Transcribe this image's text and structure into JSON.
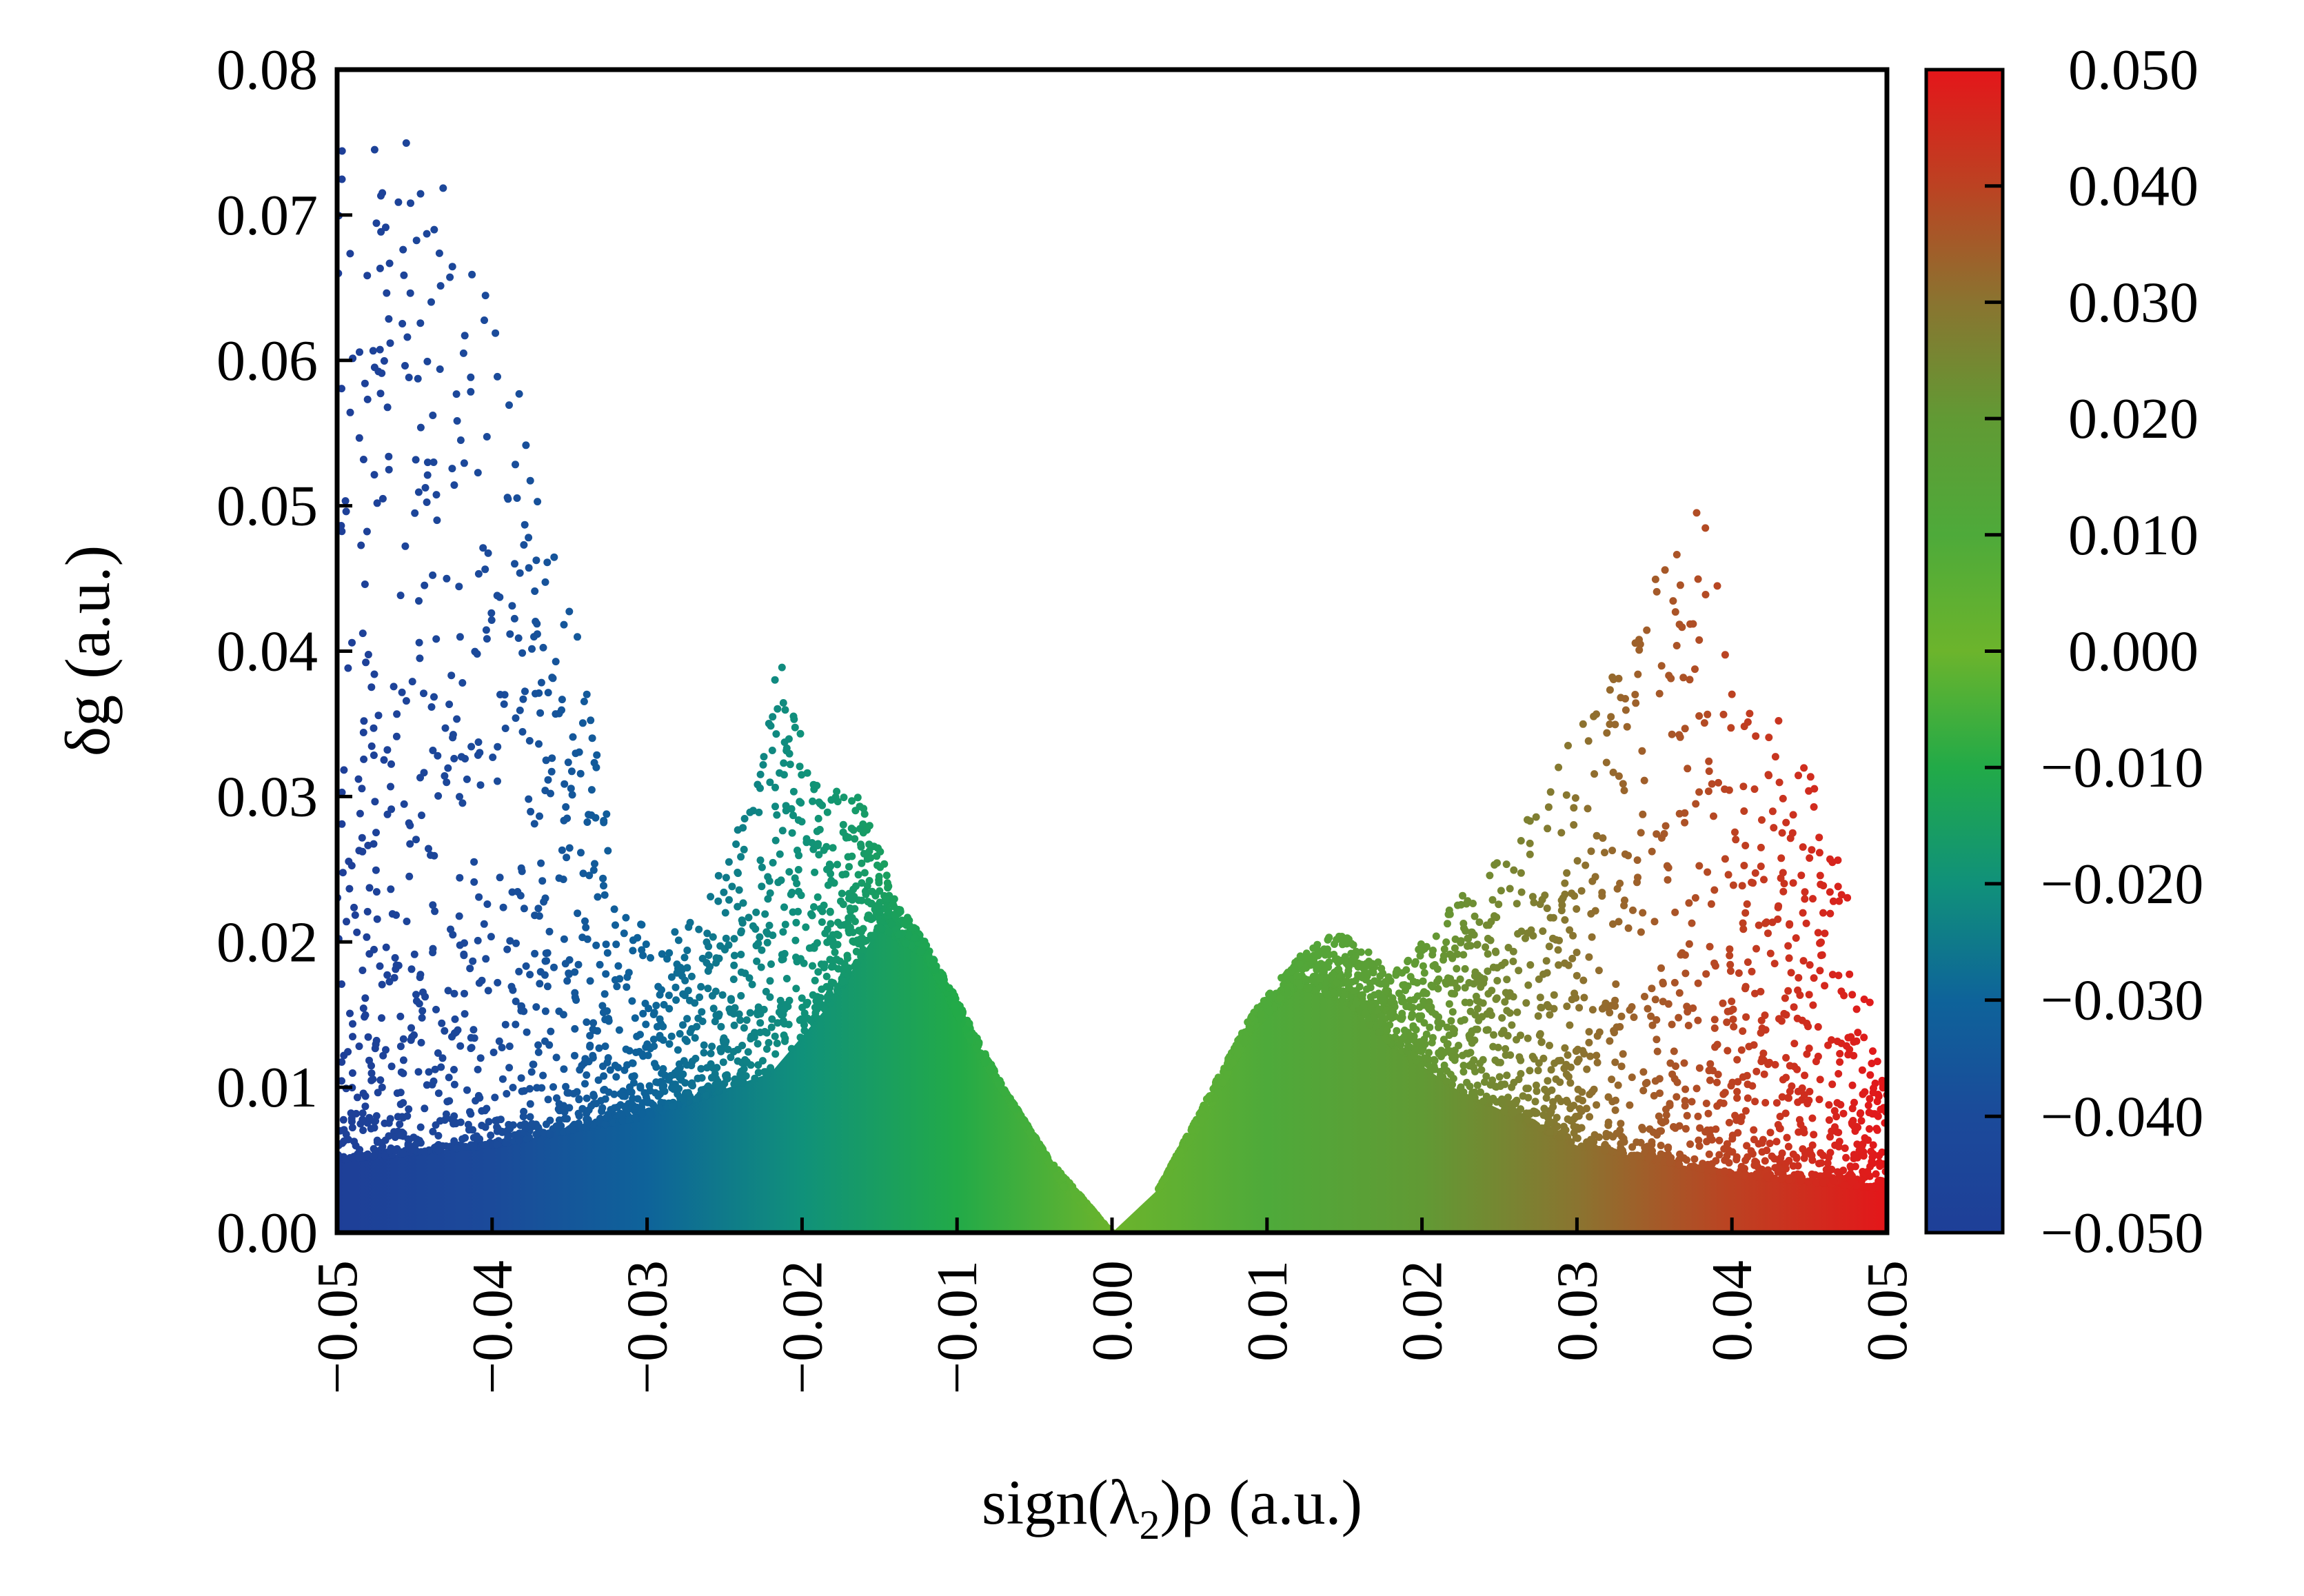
{
  "chart_data": {
    "type": "scatter",
    "title": "",
    "xlabel": "sign(λ₂)ρ (a.u.)",
    "xlabel_parts": {
      "pre": "sign(λ",
      "sub": "2",
      "post": ")ρ (a.u.)"
    },
    "ylabel": "δg (a.u.)",
    "xlim": [
      -0.05,
      0.05
    ],
    "ylim": [
      0,
      0.08
    ],
    "x_ticks": [
      "−0.05",
      "−0.04",
      "−0.03",
      "−0.02",
      "−0.01",
      "0.00",
      "0.01",
      "0.02",
      "0.03",
      "0.04",
      "0.05"
    ],
    "x_tick_values": [
      -0.05,
      -0.04,
      -0.03,
      -0.02,
      -0.01,
      0,
      0.01,
      0.02,
      0.03,
      0.04,
      0.05
    ],
    "y_ticks": [
      "0.00",
      "0.01",
      "0.02",
      "0.03",
      "0.04",
      "0.05",
      "0.06",
      "0.07",
      "0.08"
    ],
    "y_tick_values": [
      0,
      0.01,
      0.02,
      0.03,
      0.04,
      0.05,
      0.06,
      0.07,
      0.08
    ],
    "grid": false,
    "color_by": "x",
    "colorbar": {
      "range": [
        -0.05,
        0.05
      ],
      "ticks": [
        "0.050",
        "0.040",
        "0.030",
        "0.020",
        "0.010",
        "0.000",
        "−0.010",
        "−0.020",
        "−0.030",
        "−0.040",
        "−0.050"
      ],
      "tick_values": [
        0.05,
        0.04,
        0.03,
        0.02,
        0.01,
        0,
        -0.01,
        -0.02,
        -0.03,
        -0.04,
        -0.05
      ],
      "colors": [
        {
          "v": -0.05,
          "c": "#1e3f98"
        },
        {
          "v": -0.04,
          "c": "#1b4a9a"
        },
        {
          "v": -0.03,
          "c": "#0e639a"
        },
        {
          "v": -0.02,
          "c": "#10917a"
        },
        {
          "v": -0.01,
          "c": "#22aa48"
        },
        {
          "v": 0.0,
          "c": "#6cb42c"
        },
        {
          "v": 0.01,
          "c": "#4eaa3a"
        },
        {
          "v": 0.02,
          "c": "#619a34"
        },
        {
          "v": 0.03,
          "c": "#8a7430"
        },
        {
          "v": 0.04,
          "c": "#bc4222"
        },
        {
          "v": 0.05,
          "c": "#e4161a"
        }
      ]
    },
    "upper_envelope": [
      [
        -0.0495,
        0.08
      ],
      [
        -0.046,
        0.076
      ],
      [
        -0.043,
        0.072
      ],
      [
        -0.04,
        0.066
      ],
      [
        -0.037,
        0.052
      ],
      [
        -0.035,
        0.045
      ],
      [
        -0.034,
        0.04
      ],
      [
        -0.033,
        0.031
      ],
      [
        -0.031,
        0.022
      ],
      [
        -0.029,
        0.02
      ],
      [
        -0.026,
        0.024
      ],
      [
        -0.023,
        0.03
      ],
      [
        -0.0215,
        0.041
      ],
      [
        -0.019,
        0.031
      ],
      [
        -0.016,
        0.03
      ],
      [
        -0.014,
        0.023
      ],
      [
        -0.012,
        0.02
      ],
      [
        -0.01,
        0.016
      ],
      [
        -0.007,
        0.01
      ],
      [
        -0.004,
        0.005
      ],
      [
        0,
        0
      ],
      [
        0.003,
        0.003
      ],
      [
        0.006,
        0.009
      ],
      [
        0.009,
        0.015
      ],
      [
        0.012,
        0.019
      ],
      [
        0.015,
        0.021
      ],
      [
        0.018,
        0.018
      ],
      [
        0.02,
        0.02
      ],
      [
        0.023,
        0.024
      ],
      [
        0.026,
        0.028
      ],
      [
        0.029,
        0.033
      ],
      [
        0.032,
        0.038
      ],
      [
        0.035,
        0.045
      ],
      [
        0.038,
        0.05
      ],
      [
        0.04,
        0.04
      ],
      [
        0.042,
        0.035
      ],
      [
        0.044,
        0.036
      ],
      [
        0.047,
        0.026
      ],
      [
        0.05,
        0.012
      ]
    ],
    "dense_envelope": [
      [
        -0.05,
        0.005
      ],
      [
        -0.04,
        0.006
      ],
      [
        -0.03,
        0.008
      ],
      [
        -0.022,
        0.011
      ],
      [
        -0.018,
        0.016
      ],
      [
        -0.015,
        0.021
      ],
      [
        -0.012,
        0.019
      ],
      [
        -0.009,
        0.013
      ],
      [
        -0.006,
        0.008
      ],
      [
        -0.003,
        0.003
      ],
      [
        0,
        0
      ],
      [
        0.003,
        0.003
      ],
      [
        0.006,
        0.008
      ],
      [
        0.009,
        0.014
      ],
      [
        0.012,
        0.017
      ],
      [
        0.015,
        0.016
      ],
      [
        0.018,
        0.013
      ],
      [
        0.022,
        0.01
      ],
      [
        0.03,
        0.006
      ],
      [
        0.04,
        0.004
      ],
      [
        0.05,
        0.003
      ]
    ]
  }
}
